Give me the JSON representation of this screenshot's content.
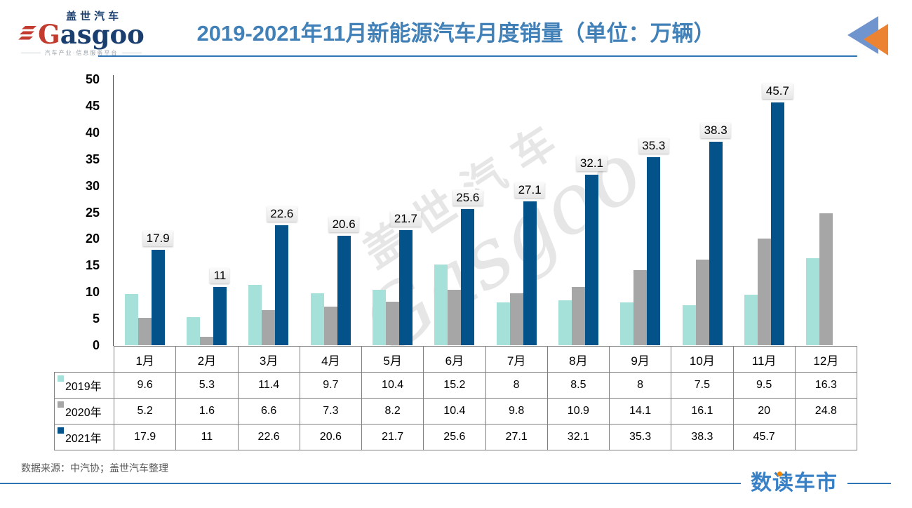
{
  "header": {
    "logo": {
      "brand_cn": "盖世汽车",
      "brand_en": "Gasgoo",
      "tagline": "汽车产业·信息服务平台"
    },
    "title": "2019-2021年11月新能源汽车月度销量（单位：万辆）",
    "nav_icon": "double-back-arrow-icon"
  },
  "chart_data": {
    "type": "bar",
    "title": "2019-2021年11月新能源汽车月度销量（单位：万辆）",
    "unit": "万辆",
    "categories": [
      "1月",
      "2月",
      "3月",
      "4月",
      "5月",
      "6月",
      "7月",
      "8月",
      "9月",
      "10月",
      "11月",
      "12月"
    ],
    "series": [
      {
        "name": "2019年",
        "color": "#a6e1d9",
        "values": [
          9.6,
          5.3,
          11.4,
          9.7,
          10.4,
          15.2,
          8,
          8.5,
          8,
          7.5,
          9.5,
          16.3
        ]
      },
      {
        "name": "2020年",
        "color": "#a6a6a6",
        "values": [
          5.2,
          1.6,
          6.6,
          7.3,
          8.2,
          10.4,
          9.8,
          10.9,
          14.1,
          16.1,
          20,
          24.8
        ]
      },
      {
        "name": "2021年",
        "color": "#03528a",
        "data_labels": true,
        "values": [
          17.9,
          11,
          22.6,
          20.6,
          21.7,
          25.6,
          27.1,
          32.1,
          35.3,
          38.3,
          45.7,
          null
        ]
      }
    ],
    "ylim": [
      0,
      50
    ],
    "yticks": [
      0,
      5,
      10,
      15,
      20,
      25,
      30,
      35,
      40,
      45,
      50
    ],
    "grid": false,
    "legend_position": "table-rows",
    "data_table_shown": true
  },
  "watermark": {
    "text_cn": "盖世汽车",
    "text_en": "Gasgoo"
  },
  "footer": {
    "source": "数据来源：中汽协；盖世汽车整理",
    "brand": "数读车市"
  },
  "colors": {
    "title": "#4181b8",
    "rule_blue": "#2e75b6",
    "series_2019": "#a6e1d9",
    "series_2020": "#a6a6a6",
    "series_2021": "#03528a",
    "table_border": "#808080",
    "arrow_blue": "#7094ce",
    "arrow_orange": "#ec8333",
    "brand_blue": "#3981c6",
    "brand_dot_orange": "#f08300",
    "logo_navy": "#1a3e6e",
    "logo_red": "#c23b2e"
  }
}
